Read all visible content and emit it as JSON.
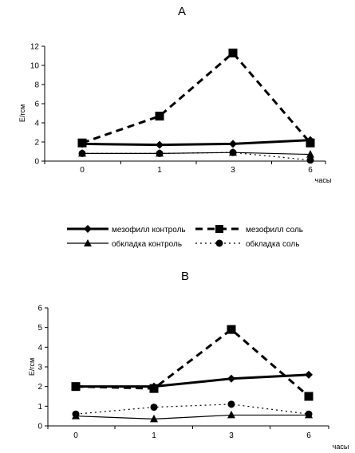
{
  "chart_data": [
    {
      "type": "line",
      "title": "А",
      "categories": [
        "0",
        "1",
        "3",
        "6"
      ],
      "xlabel": "часы",
      "ylabel": "Е/гсм",
      "ylim": [
        0,
        12
      ],
      "yticks": [
        0,
        2,
        4,
        6,
        8,
        10,
        12
      ],
      "grid": false,
      "series": [
        {
          "name": "мезофилл контроль",
          "values": [
            1.8,
            1.7,
            1.8,
            2.2
          ],
          "color": "#000000",
          "style": "solid-thick",
          "marker": "diamond"
        },
        {
          "name": "мезофилл соль",
          "values": [
            1.9,
            4.7,
            11.3,
            1.9
          ],
          "color": "#000000",
          "style": "dashed",
          "marker": "square"
        },
        {
          "name": "обкладка контроль",
          "values": [
            0.8,
            0.8,
            0.9,
            0.7
          ],
          "color": "#000000",
          "style": "solid-thin",
          "marker": "triangle"
        },
        {
          "name": "обкладка соль",
          "values": [
            0.8,
            0.8,
            0.9,
            0.1
          ],
          "color": "#000000",
          "style": "dotted",
          "marker": "circle"
        }
      ]
    },
    {
      "type": "line",
      "title": "В",
      "categories": [
        "0",
        "1",
        "3",
        "6"
      ],
      "xlabel": "часы",
      "ylabel": "Е/гсм",
      "ylim": [
        0,
        6
      ],
      "yticks": [
        0,
        1,
        2,
        3,
        4,
        5,
        6
      ],
      "grid": false,
      "series": [
        {
          "name": "мезофилл контроль",
          "values": [
            2.0,
            2.0,
            2.4,
            2.6
          ],
          "color": "#000000",
          "style": "solid-thick",
          "marker": "diamond"
        },
        {
          "name": "мезофилл соль",
          "values": [
            2.0,
            1.9,
            4.9,
            1.5
          ],
          "color": "#000000",
          "style": "dashed",
          "marker": "square"
        },
        {
          "name": "обкладка контроль",
          "values": [
            0.5,
            0.35,
            0.55,
            0.55
          ],
          "color": "#000000",
          "style": "solid-thin",
          "marker": "triangle"
        },
        {
          "name": "обкладка соль",
          "values": [
            0.6,
            0.95,
            1.1,
            0.6
          ],
          "color": "#000000",
          "style": "dotted",
          "marker": "circle"
        }
      ]
    }
  ],
  "legend": {
    "items": [
      {
        "label": "мезофилл контроль",
        "style": "solid-thick",
        "marker": "diamond"
      },
      {
        "label": "мезофилл соль",
        "style": "dashed",
        "marker": "square"
      },
      {
        "label": "обкладка контроль",
        "style": "solid-thin",
        "marker": "triangle"
      },
      {
        "label": "обкладка соль",
        "style": "dotted",
        "marker": "circle"
      }
    ]
  }
}
